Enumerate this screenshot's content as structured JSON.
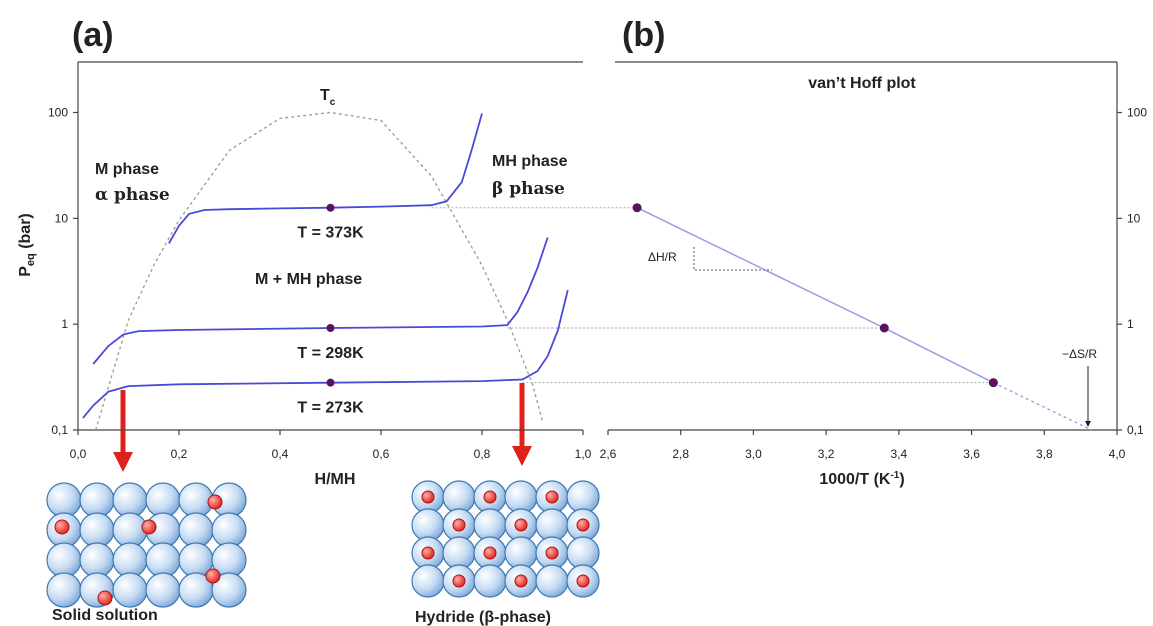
{
  "chart_data": [
    {
      "type": "line",
      "panel_label": "(a)",
      "xlabel": "H/MH",
      "ylabel": [
        "P",
        "eq",
        " (bar)"
      ],
      "log_y": true,
      "xlim": [
        0,
        1
      ],
      "ylim": [
        0.1,
        300
      ],
      "xticks": [
        {
          "value": 0,
          "label": "0,0"
        },
        {
          "value": 0.2,
          "label": "0,2"
        },
        {
          "value": 0.4,
          "label": "0,4"
        },
        {
          "value": 0.6,
          "label": "0,6"
        },
        {
          "value": 0.8,
          "label": "0,8"
        },
        {
          "value": 1,
          "label": "1,0"
        }
      ],
      "yticks": [
        {
          "value": 0.1,
          "label": "0,1"
        },
        1,
        10,
        100
      ],
      "series": [
        {
          "name": "T = 373K",
          "color": "#4a4ad8",
          "x": [
            0.18,
            0.2,
            0.22,
            0.25,
            0.3,
            0.4,
            0.5,
            0.6,
            0.7,
            0.73,
            0.76,
            0.78,
            0.8
          ],
          "values": [
            5.8,
            8.5,
            11,
            12,
            12.2,
            12.4,
            12.6,
            12.9,
            13.3,
            14.5,
            22,
            45,
            98
          ]
        },
        {
          "name": "T = 298K",
          "color": "#4a4ad8",
          "x": [
            0.03,
            0.06,
            0.09,
            0.12,
            0.2,
            0.5,
            0.8,
            0.85,
            0.87,
            0.89,
            0.91,
            0.93
          ],
          "values": [
            0.42,
            0.62,
            0.8,
            0.86,
            0.88,
            0.92,
            0.95,
            0.98,
            1.3,
            2.0,
            3.4,
            6.6
          ]
        },
        {
          "name": "T = 273K",
          "color": "#4a4ad8",
          "x": [
            0.01,
            0.03,
            0.06,
            0.1,
            0.2,
            0.5,
            0.8,
            0.88,
            0.91,
            0.93,
            0.95,
            0.97
          ],
          "values": [
            0.13,
            0.17,
            0.23,
            0.26,
            0.27,
            0.28,
            0.29,
            0.3,
            0.36,
            0.5,
            0.87,
            2.1
          ]
        }
      ],
      "critical_curve": {
        "label": [
          "T",
          "c"
        ],
        "color": "#999999",
        "x": [
          0.035,
          0.1,
          0.15,
          0.2,
          0.3,
          0.4,
          0.5,
          0.6,
          0.7,
          0.8,
          0.85,
          0.9,
          0.92
        ],
        "values": [
          0.1,
          1.1,
          3.6,
          9.6,
          44,
          88,
          100,
          84,
          25,
          3.6,
          1.09,
          0.27,
          0.12
        ]
      },
      "plateau_points": {
        "color": "#5b1060",
        "x": [
          0.5,
          0.5,
          0.5
        ],
        "values": [
          12.6,
          0.92,
          0.28
        ]
      },
      "annotations": [
        "M phase",
        "α phase",
        "MH phase",
        "β phase",
        "M + MH phase"
      ],
      "structures": [
        "Solid solution",
        "Hydride (β-phase)"
      ]
    },
    {
      "type": "line",
      "panel_label": "(b)",
      "title": "van’t Hoff plot",
      "xlabel": [
        "1000/T (K",
        "-1",
        ")"
      ],
      "log_y": true,
      "xlim": [
        2.6,
        4.0
      ],
      "ylim": [
        0.1,
        300
      ],
      "xticks": [
        {
          "value": 2.6,
          "label": "2,6"
        },
        {
          "value": 2.8,
          "label": "2,8"
        },
        {
          "value": 3.0,
          "label": "3,0"
        },
        {
          "value": 3.2,
          "label": "3,2"
        },
        {
          "value": 3.4,
          "label": "3,4"
        },
        {
          "value": 3.6,
          "label": "3,6"
        },
        {
          "value": 3.8,
          "label": "3,8"
        },
        {
          "value": 4.0,
          "label": "4,0"
        }
      ],
      "yticks": [
        {
          "value": 0.1,
          "label": "0,1"
        },
        1,
        10,
        100
      ],
      "series": [
        {
          "color": "#9b9be6",
          "marker_color": "#5b1060",
          "x": [
            2.68,
            3.36,
            3.66
          ],
          "values": [
            12.6,
            0.92,
            0.28
          ]
        }
      ],
      "extrapolation": {
        "color": "#9b9be6",
        "x": [
          3.66,
          3.93
        ],
        "values": [
          0.28,
          0.1
        ]
      },
      "annotations": [
        "ΔH/R",
        "−ΔS/R"
      ]
    }
  ]
}
